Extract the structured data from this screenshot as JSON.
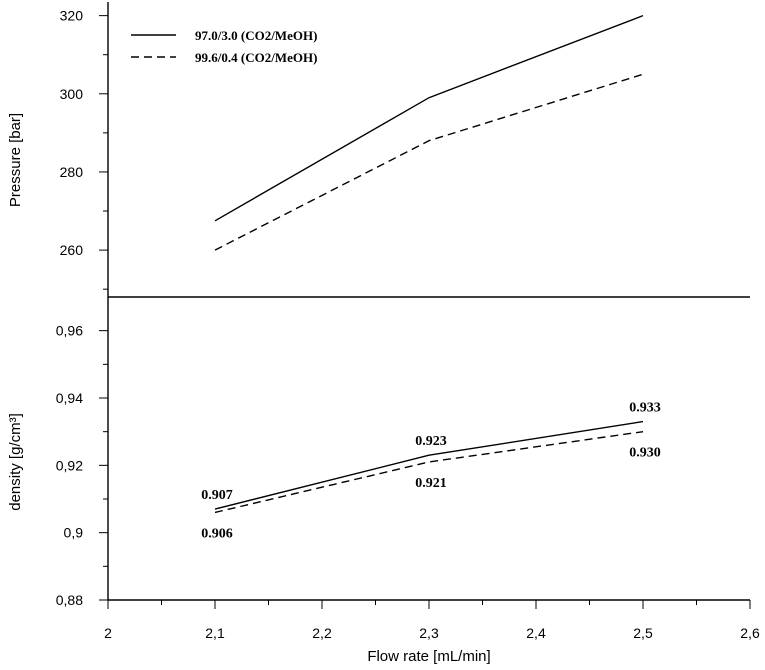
{
  "chart_data": [
    {
      "type": "line",
      "panel": "top",
      "ylabel": "Pressure [bar]",
      "xlim": [
        2.0,
        2.6
      ],
      "ylim": [
        248,
        324
      ],
      "yticks": [
        260,
        280,
        300,
        320
      ],
      "yticks_minor": [
        250,
        270,
        290,
        310
      ],
      "ytick_labels": [
        "260",
        "280",
        "300",
        "320"
      ],
      "legend": {
        "placement": "top-left"
      },
      "series": [
        {
          "name": "97.0/3.0 (CO2/MeOH)",
          "style": "solid",
          "x": [
            2.1,
            2.3,
            2.5
          ],
          "y": [
            267.5,
            299,
            320
          ]
        },
        {
          "name": "99.6/0.4 (CO2/MeOH)",
          "style": "dashed",
          "x": [
            2.1,
            2.3,
            2.5
          ],
          "y": [
            260,
            288,
            305
          ]
        }
      ]
    },
    {
      "type": "line",
      "panel": "bottom",
      "xlabel": "Flow rate [mL/min]",
      "ylabel": "density [g/cm³]",
      "xlim": [
        2.0,
        2.6
      ],
      "ylim": [
        0.88,
        0.97
      ],
      "xticks": [
        2.0,
        2.1,
        2.2,
        2.3,
        2.4,
        2.5,
        2.6
      ],
      "xticks_minor": [
        2.05,
        2.15,
        2.25,
        2.35,
        2.45,
        2.55
      ],
      "xtick_labels": [
        "2",
        "2,1",
        "2,2",
        "2,3",
        "2,4",
        "2,5",
        "2,6"
      ],
      "yticks": [
        0.88,
        0.9,
        0.92,
        0.94,
        0.96
      ],
      "yticks_minor": [
        0.89,
        0.91,
        0.93,
        0.95
      ],
      "ytick_labels": [
        "0,88",
        "0,9",
        "0,92",
        "0,94",
        "0,96"
      ],
      "series": [
        {
          "style": "solid",
          "x": [
            2.1,
            2.3,
            2.5
          ],
          "y": [
            0.907,
            0.923,
            0.933
          ],
          "labels": [
            "0.907",
            "0.923",
            "0.933"
          ],
          "label_side": "above"
        },
        {
          "style": "dashed",
          "x": [
            2.1,
            2.3,
            2.5
          ],
          "y": [
            0.906,
            0.921,
            0.93
          ],
          "labels": [
            "0.906",
            "0.921",
            "0.930"
          ],
          "label_side": "below"
        }
      ]
    }
  ]
}
